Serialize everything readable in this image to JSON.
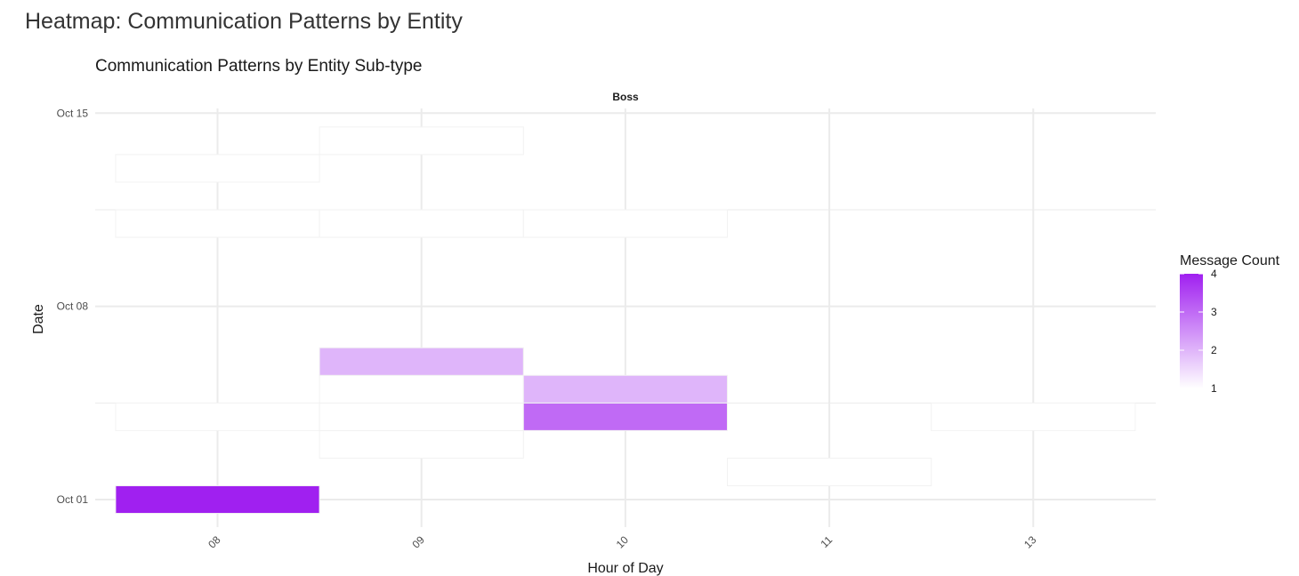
{
  "page_title": "Heatmap: Communication Patterns by Entity",
  "chart_data": {
    "type": "heatmap",
    "title": "Communication Patterns by Entity Sub-type",
    "facet": "Boss",
    "xlabel": "Hour of Day",
    "ylabel": "Date",
    "x_categories": [
      "08",
      "09",
      "10",
      "11",
      "13"
    ],
    "y_ticks": [
      "Oct 01",
      "Oct 08",
      "Oct 15"
    ],
    "grid": true,
    "legend": {
      "title": "Message Count",
      "position": "right",
      "min": 1,
      "max": 4,
      "ticks": [
        1,
        2,
        3,
        4
      ],
      "low_color": "#ffffff",
      "high_color": "#a020f0"
    },
    "cells": [
      {
        "hour": "08",
        "day": 1,
        "count": 4
      },
      {
        "hour": "08",
        "day": 4,
        "count": 1
      },
      {
        "hour": "08",
        "day": 11,
        "count": 1
      },
      {
        "hour": "08",
        "day": 13,
        "count": 1
      },
      {
        "hour": "09",
        "day": 3,
        "count": 1
      },
      {
        "hour": "09",
        "day": 4,
        "count": 1
      },
      {
        "hour": "09",
        "day": 5,
        "count": 1
      },
      {
        "hour": "09",
        "day": 6,
        "count": 2
      },
      {
        "hour": "09",
        "day": 11,
        "count": 1
      },
      {
        "hour": "09",
        "day": 14,
        "count": 1
      },
      {
        "hour": "10",
        "day": 4,
        "count": 3
      },
      {
        "hour": "10",
        "day": 5,
        "count": 2
      },
      {
        "hour": "10",
        "day": 11,
        "count": 1
      },
      {
        "hour": "11",
        "day": 2,
        "count": 1
      },
      {
        "hour": "13",
        "day": 4,
        "count": 1
      }
    ]
  }
}
